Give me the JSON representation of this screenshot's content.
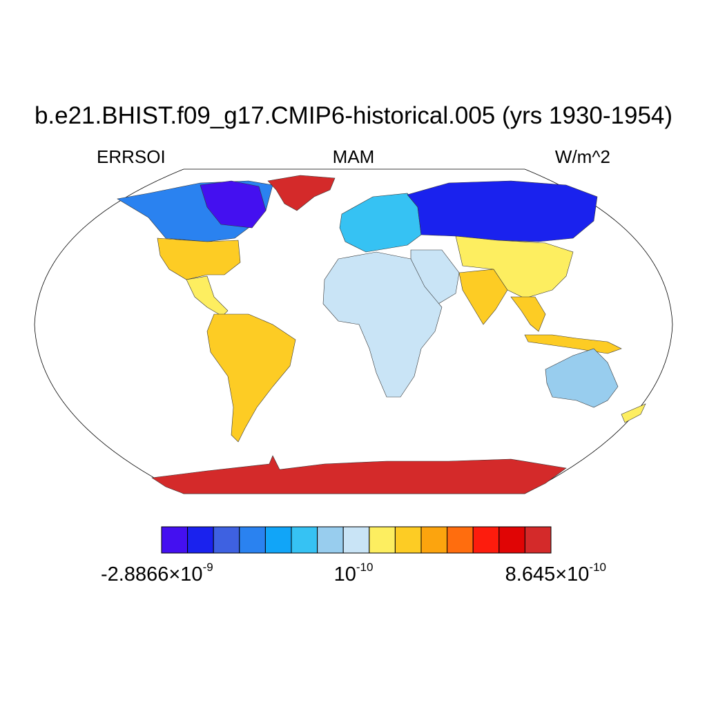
{
  "title": "b.e21.BHIST.f09_g17.CMIP6-historical.005 (yrs 1930-1954)",
  "subtitle_left": "ERRSOI",
  "subtitle_center": "MAM",
  "subtitle_right": "W/m^2",
  "colorbar": {
    "colors": [
      "#4410f0",
      "#1a22ee",
      "#3e61e1",
      "#2a82f0",
      "#11a5f8",
      "#36c2f3",
      "#98cdee",
      "#c9e4f6",
      "#fdee60",
      "#fdcc24",
      "#fca40e",
      "#ff6d0e",
      "#fd1c0d",
      "#e00505",
      "#d42a2a"
    ],
    "labels": [
      {
        "mantissa": "-2.8866",
        "times": "×",
        "base": "10",
        "exp": "-9"
      },
      {
        "mantissa": "",
        "times": "",
        "base": "10",
        "exp": "-10"
      },
      {
        "mantissa": "8.645",
        "times": "×",
        "base": "10",
        "exp": "-10"
      }
    ]
  },
  "map": {
    "projection": "robinson",
    "ocean_color": "#ffffff",
    "regions": [
      {
        "name": "north-america-arctic",
        "color": "#4410f0"
      },
      {
        "name": "canada",
        "color": "#2a82f0"
      },
      {
        "name": "usa",
        "color": "#fdcc24"
      },
      {
        "name": "central-america",
        "color": "#fdee60"
      },
      {
        "name": "south-america",
        "color": "#fdcc24"
      },
      {
        "name": "greenland",
        "color": "#d42a2a"
      },
      {
        "name": "europe",
        "color": "#36c2f3"
      },
      {
        "name": "russia",
        "color": "#1a22ee"
      },
      {
        "name": "africa",
        "color": "#c9e4f6"
      },
      {
        "name": "middle-east",
        "color": "#c9e4f6"
      },
      {
        "name": "india",
        "color": "#fdcc24"
      },
      {
        "name": "china",
        "color": "#fdee60"
      },
      {
        "name": "southeast-asia",
        "color": "#fdcc24"
      },
      {
        "name": "indonesia",
        "color": "#fdcc24"
      },
      {
        "name": "australia",
        "color": "#98cdee"
      },
      {
        "name": "new-zealand",
        "color": "#fdee60"
      },
      {
        "name": "antarctica",
        "color": "#d42a2a"
      }
    ]
  }
}
